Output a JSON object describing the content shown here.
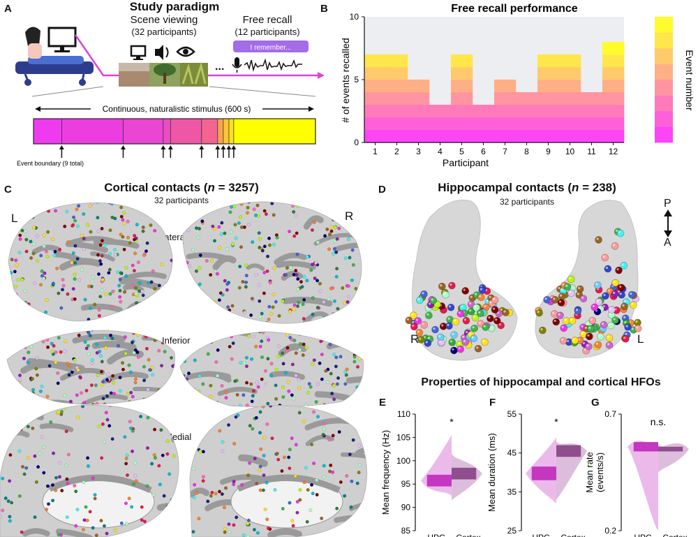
{
  "panels": {
    "A": {
      "label": "A",
      "title": "Study paradigm",
      "scene_viewing": "Scene viewing",
      "scene_participants": "(32 participants)",
      "free_recall": "Free recall",
      "recall_participants": "(12 participants)",
      "speech_bubble": "I remember...",
      "ellipsis": "...",
      "stimulus_label": "Continuous, naturalistic  stimulus (600 s)",
      "boundary_label": "Event boundary (9 total)",
      "event_bar_colors": [
        "#ef3bef",
        "#ec3ee0",
        "#ea45d3",
        "#ea4dc2",
        "#f056a6",
        "#f36590",
        "#f8a34c",
        "#fbc630",
        "#fde01f",
        "#ffff00"
      ],
      "boundaries_fraction": [
        0.1,
        0.318,
        0.46,
        0.486,
        0.596,
        0.653,
        0.673,
        0.693,
        0.71
      ]
    },
    "B": {
      "label": "B",
      "title": "Free recall performance",
      "colorbar_label": "Event number"
    },
    "C": {
      "label": "C",
      "title": "Cortical contacts (n = 3257)",
      "subtitle": "32 participants",
      "left_hemi": "L",
      "right_hemi": "R",
      "view_lateral": "Lateral",
      "view_inferior": "Inferior",
      "view_medial": "Medial"
    },
    "D": {
      "label": "D",
      "title": "Hippocampal contacts (n = 238)",
      "subtitle": "32 participants",
      "left_label": "R",
      "right_label": "L",
      "axis_p": "P",
      "axis_a": "A"
    },
    "EFG": {
      "section_title": "Properties of hippocampal and cortical HFOs",
      "E_label": "E",
      "F_label": "F",
      "G_label": "G",
      "colors": {
        "hpc_light": "#e9b3e8",
        "hpc_dark": "#c437c0",
        "ctx_light": "#d9b6d8",
        "ctx_dark": "#8e4f8c"
      }
    }
  },
  "chart_data": [
    {
      "id": "B",
      "type": "bar",
      "title": "Free recall performance",
      "categories": [
        "1",
        "2",
        "3",
        "4",
        "5",
        "6",
        "7",
        "8",
        "9",
        "10",
        "11",
        "12"
      ],
      "values": [
        7,
        7,
        5,
        3,
        7,
        3,
        5,
        4,
        7,
        7,
        4,
        8
      ],
      "xlabel": "Participant",
      "ylabel": "# of events  recalled",
      "ylim": [
        0,
        10
      ],
      "yticks": [
        "0",
        "5",
        "10"
      ],
      "stack_colors": [
        "#fb45f6",
        "#fd60d8",
        "#fe7aba",
        "#ff95a0",
        "#ffaf86",
        "#ffca6b",
        "#ffe64a",
        "#fffb2e"
      ],
      "background": "#eceef1"
    },
    {
      "id": "E",
      "type": "violin",
      "ylabel": "Mean frequency (Hz)",
      "ylim": [
        85,
        110
      ],
      "yticks": [
        "85",
        "90",
        "95",
        "100",
        "105",
        "110"
      ],
      "categories": [
        "HPC",
        "Cortex"
      ],
      "significance": "*",
      "hpc": {
        "min": 92.5,
        "max": 105.5,
        "q1": 94.5,
        "q3": 97.0,
        "median": 97.0
      },
      "cortex": {
        "min": 91.5,
        "max": 101.5,
        "q1": 96.0,
        "q3": 98.5,
        "median": 98.5
      }
    },
    {
      "id": "F",
      "type": "violin",
      "ylabel": "Mean duration (ms)",
      "ylim": [
        25,
        55
      ],
      "yticks": [
        "25",
        "35",
        "45",
        "55"
      ],
      "categories": [
        "HPC",
        "Cortex"
      ],
      "significance": "*",
      "hpc": {
        "min": 32.0,
        "max": 49.0,
        "q1": 38.0,
        "q3": 41.5,
        "median": 41.5
      },
      "cortex": {
        "min": 33.0,
        "max": 48.0,
        "q1": 44.0,
        "q3": 47.0,
        "median": 46.0
      }
    },
    {
      "id": "G",
      "type": "violin",
      "ylabel": "Mean rate\n(events/s)",
      "ylim": [
        0.2,
        0.7
      ],
      "yticks": [
        "0.2",
        "0.7"
      ],
      "categories": [
        "HPC",
        "Cortex"
      ],
      "significance": "n.s.",
      "hpc": {
        "min": 0.2,
        "max": 0.58,
        "q1": 0.54,
        "q3": 0.58,
        "median": 0.57
      },
      "cortex": {
        "min": 0.45,
        "max": 0.57,
        "q1": 0.54,
        "q3": 0.56,
        "median": 0.55
      }
    }
  ]
}
